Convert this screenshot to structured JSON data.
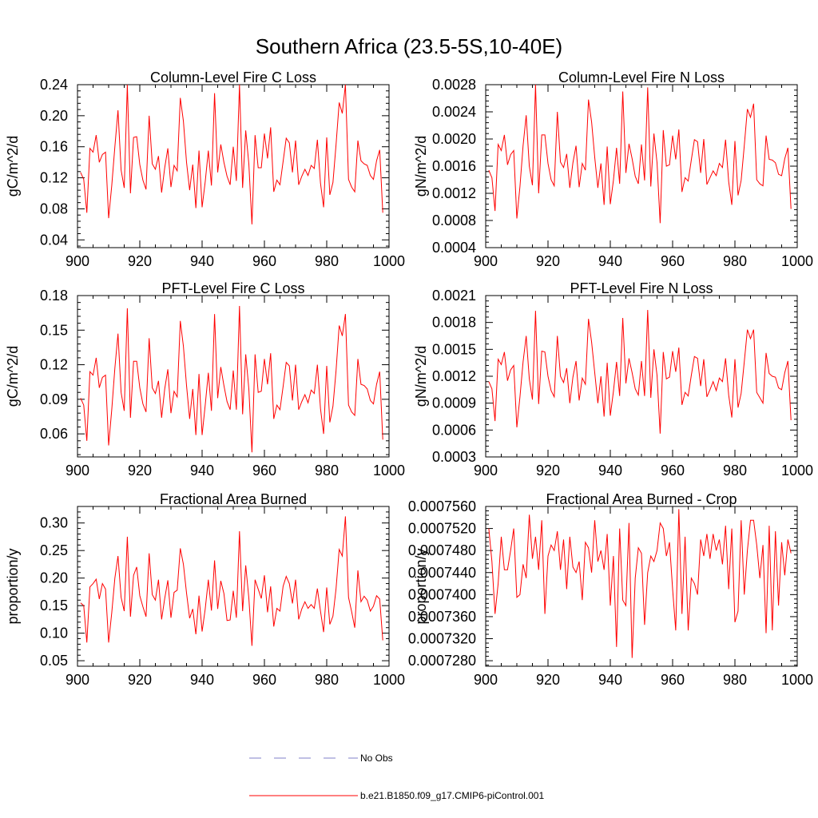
{
  "title": "Southern Africa (23.5-5S,10-40E)",
  "colors": {
    "series": "#ff0000",
    "obs": "#8080c8",
    "axis": "#000000"
  },
  "legend": {
    "obs_label": "No Obs",
    "model_label": "b.e21.B1850.f09_g17.CMIP6-piControl.001"
  },
  "chart_data": [
    {
      "type": "line",
      "title": "Column-Level Fire C Loss",
      "ylabel": "gC/m^2/d",
      "xlim": [
        900,
        1000
      ],
      "ylim": [
        0.03,
        0.24
      ],
      "xticks": [
        "900",
        "920",
        "940",
        "960",
        "980",
        "1000"
      ],
      "yticks": [
        "0.04",
        "0.08",
        "0.12",
        "0.16",
        "0.20",
        "0.24"
      ],
      "x_start": 901,
      "values": [
        0.127,
        0.118,
        0.075,
        0.158,
        0.153,
        0.175,
        0.14,
        0.15,
        0.153,
        0.068,
        0.11,
        0.16,
        0.207,
        0.13,
        0.107,
        0.24,
        0.1,
        0.172,
        0.173,
        0.137,
        0.117,
        0.105,
        0.2,
        0.138,
        0.131,
        0.148,
        0.101,
        0.133,
        0.158,
        0.108,
        0.136,
        0.129,
        0.223,
        0.193,
        0.14,
        0.104,
        0.137,
        0.081,
        0.155,
        0.082,
        0.115,
        0.155,
        0.11,
        0.229,
        0.127,
        0.163,
        0.14,
        0.122,
        0.111,
        0.16,
        0.116,
        0.24,
        0.107,
        0.181,
        0.138,
        0.06,
        0.175,
        0.133,
        0.133,
        0.177,
        0.145,
        0.185,
        0.102,
        0.117,
        0.111,
        0.141,
        0.171,
        0.165,
        0.127,
        0.168,
        0.111,
        0.122,
        0.131,
        0.123,
        0.136,
        0.132,
        0.169,
        0.113,
        0.082,
        0.172,
        0.098,
        0.114,
        0.163,
        0.217,
        0.203,
        0.24,
        0.118,
        0.108,
        0.102,
        0.168,
        0.142,
        0.138,
        0.136,
        0.123,
        0.118,
        0.142,
        0.156,
        0.075
      ]
    },
    {
      "type": "line",
      "title": "Column-Level Fire N Loss",
      "ylabel": "gN/m^2/d",
      "xlim": [
        900,
        1000
      ],
      "ylim": [
        0.0004,
        0.0028
      ],
      "xticks": [
        "900",
        "920",
        "940",
        "960",
        "980",
        "1000"
      ],
      "yticks": [
        "0.0004",
        "0.0008",
        "0.0012",
        "0.0016",
        "0.0020",
        "0.0024",
        "0.0028"
      ],
      "x_start": 901,
      "values": [
        0.00154,
        0.00143,
        0.00094,
        0.00192,
        0.00183,
        0.00206,
        0.00162,
        0.00177,
        0.00183,
        0.00083,
        0.0013,
        0.0019,
        0.00235,
        0.0016,
        0.00132,
        0.0028,
        0.0012,
        0.00206,
        0.00206,
        0.00164,
        0.0014,
        0.00131,
        0.0024,
        0.00166,
        0.00158,
        0.00178,
        0.00128,
        0.00165,
        0.0019,
        0.00129,
        0.00164,
        0.00154,
        0.00258,
        0.00225,
        0.00173,
        0.00128,
        0.00164,
        0.00103,
        0.00189,
        0.00104,
        0.00139,
        0.00187,
        0.00134,
        0.0027,
        0.0015,
        0.00193,
        0.00171,
        0.00145,
        0.00134,
        0.00192,
        0.00139,
        0.00276,
        0.0013,
        0.00208,
        0.00165,
        0.00076,
        0.00213,
        0.0016,
        0.00162,
        0.00205,
        0.0017,
        0.00214,
        0.00122,
        0.00143,
        0.00138,
        0.00169,
        0.00199,
        0.00196,
        0.0015,
        0.002,
        0.00133,
        0.00143,
        0.00153,
        0.00146,
        0.00164,
        0.00158,
        0.00199,
        0.00137,
        0.00103,
        0.00197,
        0.00117,
        0.00139,
        0.0019,
        0.00244,
        0.00232,
        0.00252,
        0.0014,
        0.00134,
        0.00131,
        0.00205,
        0.0017,
        0.00169,
        0.00165,
        0.00148,
        0.00146,
        0.00171,
        0.00187,
        0.00097
      ]
    },
    {
      "type": "line",
      "title": "PFT-Level Fire C Loss",
      "ylabel": "gC/m^2/d",
      "xlim": [
        900,
        1000
      ],
      "ylim": [
        0.04,
        0.18
      ],
      "xticks": [
        "900",
        "920",
        "940",
        "960",
        "980",
        "1000"
      ],
      "yticks": [
        "0.06",
        "0.09",
        "0.12",
        "0.15",
        "0.18"
      ],
      "x_start": 901,
      "values": [
        0.091,
        0.085,
        0.054,
        0.114,
        0.111,
        0.126,
        0.1,
        0.109,
        0.111,
        0.05,
        0.081,
        0.117,
        0.147,
        0.096,
        0.08,
        0.169,
        0.074,
        0.123,
        0.123,
        0.1,
        0.086,
        0.079,
        0.143,
        0.1,
        0.095,
        0.106,
        0.074,
        0.099,
        0.116,
        0.078,
        0.097,
        0.092,
        0.158,
        0.136,
        0.102,
        0.073,
        0.099,
        0.059,
        0.112,
        0.059,
        0.085,
        0.113,
        0.08,
        0.164,
        0.091,
        0.118,
        0.102,
        0.088,
        0.081,
        0.115,
        0.081,
        0.171,
        0.077,
        0.129,
        0.099,
        0.044,
        0.129,
        0.096,
        0.097,
        0.125,
        0.103,
        0.13,
        0.073,
        0.085,
        0.081,
        0.101,
        0.122,
        0.119,
        0.089,
        0.12,
        0.081,
        0.088,
        0.094,
        0.087,
        0.098,
        0.095,
        0.12,
        0.082,
        0.06,
        0.119,
        0.07,
        0.084,
        0.115,
        0.154,
        0.145,
        0.164,
        0.085,
        0.079,
        0.076,
        0.125,
        0.103,
        0.102,
        0.099,
        0.089,
        0.086,
        0.103,
        0.114,
        0.055
      ]
    },
    {
      "type": "line",
      "title": "PFT-Level Fire N Loss",
      "ylabel": "gN/m^2/d",
      "xlim": [
        900,
        1000
      ],
      "ylim": [
        0.0003,
        0.0021
      ],
      "xticks": [
        "900",
        "920",
        "940",
        "960",
        "980",
        "1000"
      ],
      "yticks": [
        "0.0003",
        "0.0006",
        "0.0009",
        "0.0012",
        "0.0015",
        "0.0018",
        "0.0021"
      ],
      "x_start": 901,
      "values": [
        0.00114,
        0.00106,
        0.0007,
        0.00139,
        0.00133,
        0.00147,
        0.00115,
        0.00127,
        0.00132,
        0.00063,
        0.00097,
        0.00136,
        0.00165,
        0.00117,
        0.00094,
        0.00193,
        0.00089,
        0.00148,
        0.00147,
        0.0012,
        0.00104,
        0.00097,
        0.00165,
        0.0012,
        0.00113,
        0.00129,
        0.0009,
        0.00119,
        0.00137,
        0.00093,
        0.00118,
        0.00111,
        0.00184,
        0.00158,
        0.00124,
        0.0009,
        0.0012,
        0.00075,
        0.00135,
        0.00076,
        0.00103,
        0.00136,
        0.00098,
        0.00185,
        0.00112,
        0.0014,
        0.00124,
        0.00106,
        0.00099,
        0.00137,
        0.00098,
        0.00194,
        0.00096,
        0.0015,
        0.00121,
        0.00056,
        0.00147,
        0.00117,
        0.00119,
        0.00148,
        0.00125,
        0.00152,
        0.00088,
        0.00102,
        0.00098,
        0.00121,
        0.00142,
        0.0014,
        0.00109,
        0.00139,
        0.00097,
        0.00105,
        0.00114,
        0.00104,
        0.00118,
        0.00114,
        0.0014,
        0.00099,
        0.00074,
        0.00139,
        0.00085,
        0.00101,
        0.00136,
        0.00172,
        0.00162,
        0.00172,
        0.00102,
        0.00096,
        0.0009,
        0.00146,
        0.00123,
        0.0012,
        0.00119,
        0.00107,
        0.00105,
        0.00124,
        0.00137,
        0.00071
      ]
    },
    {
      "type": "line",
      "title": "Fractional Area Burned",
      "ylabel": "proportion/y",
      "xlim": [
        900,
        1000
      ],
      "ylim": [
        0.04,
        0.33
      ],
      "xticks": [
        "900",
        "920",
        "940",
        "960",
        "980",
        "1000"
      ],
      "yticks": [
        "0.05",
        "0.10",
        "0.15",
        "0.20",
        "0.25",
        "0.30"
      ],
      "x_start": 901,
      "values": [
        0.155,
        0.15,
        0.083,
        0.184,
        0.19,
        0.198,
        0.162,
        0.19,
        0.18,
        0.083,
        0.137,
        0.2,
        0.24,
        0.165,
        0.14,
        0.275,
        0.13,
        0.205,
        0.22,
        0.168,
        0.148,
        0.13,
        0.245,
        0.17,
        0.16,
        0.197,
        0.125,
        0.163,
        0.196,
        0.128,
        0.174,
        0.178,
        0.254,
        0.225,
        0.173,
        0.127,
        0.144,
        0.098,
        0.168,
        0.103,
        0.144,
        0.197,
        0.141,
        0.232,
        0.144,
        0.195,
        0.172,
        0.123,
        0.124,
        0.177,
        0.128,
        0.285,
        0.14,
        0.223,
        0.164,
        0.077,
        0.197,
        0.18,
        0.163,
        0.205,
        0.138,
        0.185,
        0.112,
        0.145,
        0.14,
        0.185,
        0.203,
        0.19,
        0.154,
        0.197,
        0.125,
        0.144,
        0.157,
        0.145,
        0.152,
        0.145,
        0.181,
        0.14,
        0.102,
        0.183,
        0.116,
        0.131,
        0.181,
        0.252,
        0.24,
        0.312,
        0.165,
        0.139,
        0.11,
        0.214,
        0.157,
        0.167,
        0.16,
        0.14,
        0.149,
        0.168,
        0.162,
        0.087
      ]
    },
    {
      "type": "line",
      "title": "Fractional Area Burned - Crop",
      "ylabel": "proportion/y",
      "xlim": [
        900,
        1000
      ],
      "ylim": [
        0.000727,
        0.000756
      ],
      "xticks": [
        "900",
        "920",
        "940",
        "960",
        "980",
        "1000"
      ],
      "yticks": [
        "0.0007280",
        "0.0007320",
        "0.0007360",
        "0.0007400",
        "0.0007440",
        "0.0007480",
        "0.0007520",
        "0.0007560"
      ],
      "x_start": 901,
      "values": [
        0.000752,
        0.000746,
        0.0007365,
        0.000742,
        0.0007505,
        0.0007445,
        0.0007445,
        0.000748,
        0.000752,
        0.0007395,
        0.00074,
        0.0007455,
        0.000743,
        0.0007545,
        0.0007465,
        0.0007505,
        0.0007445,
        0.0007535,
        0.0007365,
        0.000747,
        0.000749,
        0.000748,
        0.0007515,
        0.0007445,
        0.00075,
        0.000741,
        0.0007505,
        0.000745,
        0.000744,
        0.000746,
        0.000739,
        0.0007495,
        0.0007485,
        0.000744,
        0.0007535,
        0.000746,
        0.000748,
        0.0007445,
        0.000751,
        0.000738,
        0.000747,
        0.0007305,
        0.000752,
        0.000739,
        0.000738,
        0.000753,
        0.0007285,
        0.000743,
        0.0007485,
        0.0007475,
        0.0007345,
        0.000744,
        0.000747,
        0.000746,
        0.000748,
        0.000753,
        0.000752,
        0.000747,
        0.0007495,
        0.000741,
        0.0007335,
        0.0007555,
        0.0007365,
        0.0007505,
        0.0007335,
        0.000743,
        0.000742,
        0.00074,
        0.00075,
        0.000747,
        0.000751,
        0.0007465,
        0.000751,
        0.000748,
        0.00075,
        0.0007455,
        0.0007525,
        0.000741,
        0.000752,
        0.000735,
        0.000737,
        0.0007535,
        0.00074,
        0.000748,
        0.0007535,
        0.0007535,
        0.000749,
        0.000743,
        0.000749,
        0.000733,
        0.0007525,
        0.0007335,
        0.0007515,
        0.000738,
        0.0007495,
        0.0007435,
        0.00075,
        0.0007475
      ]
    }
  ]
}
